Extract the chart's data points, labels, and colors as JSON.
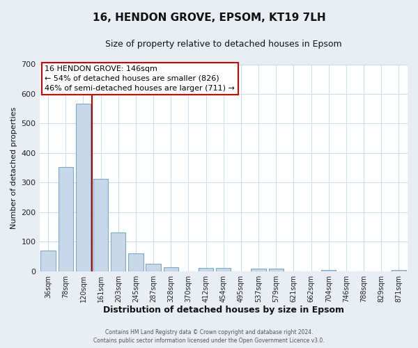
{
  "title": "16, HENDON GROVE, EPSOM, KT19 7LH",
  "subtitle": "Size of property relative to detached houses in Epsom",
  "xlabel": "Distribution of detached houses by size in Epsom",
  "ylabel": "Number of detached properties",
  "bar_labels": [
    "36sqm",
    "78sqm",
    "120sqm",
    "161sqm",
    "203sqm",
    "245sqm",
    "287sqm",
    "328sqm",
    "370sqm",
    "412sqm",
    "454sqm",
    "495sqm",
    "537sqm",
    "579sqm",
    "621sqm",
    "662sqm",
    "704sqm",
    "746sqm",
    "788sqm",
    "829sqm",
    "871sqm"
  ],
  "bar_values": [
    70,
    353,
    567,
    312,
    132,
    60,
    26,
    14,
    0,
    10,
    10,
    0,
    8,
    8,
    0,
    0,
    4,
    0,
    0,
    0,
    4
  ],
  "bar_color": "#c8d8e8",
  "bar_edge_color": "#7aaac8",
  "vline_color": "#aa0000",
  "ylim": [
    0,
    700
  ],
  "yticks": [
    0,
    100,
    200,
    300,
    400,
    500,
    600,
    700
  ],
  "annotation_title": "16 HENDON GROVE: 146sqm",
  "annotation_line1": "← 54% of detached houses are smaller (826)",
  "annotation_line2": "46% of semi-detached houses are larger (711) →",
  "annotation_box_color": "#ffffff",
  "annotation_border_color": "#cc0000",
  "footer1": "Contains HM Land Registry data © Crown copyright and database right 2024.",
  "footer2": "Contains public sector information licensed under the Open Government Licence v3.0.",
  "bg_color": "#e8eef4",
  "plot_bg_color": "#ffffff",
  "grid_color": "#d0dce8",
  "title_fontsize": 11,
  "subtitle_fontsize": 9
}
